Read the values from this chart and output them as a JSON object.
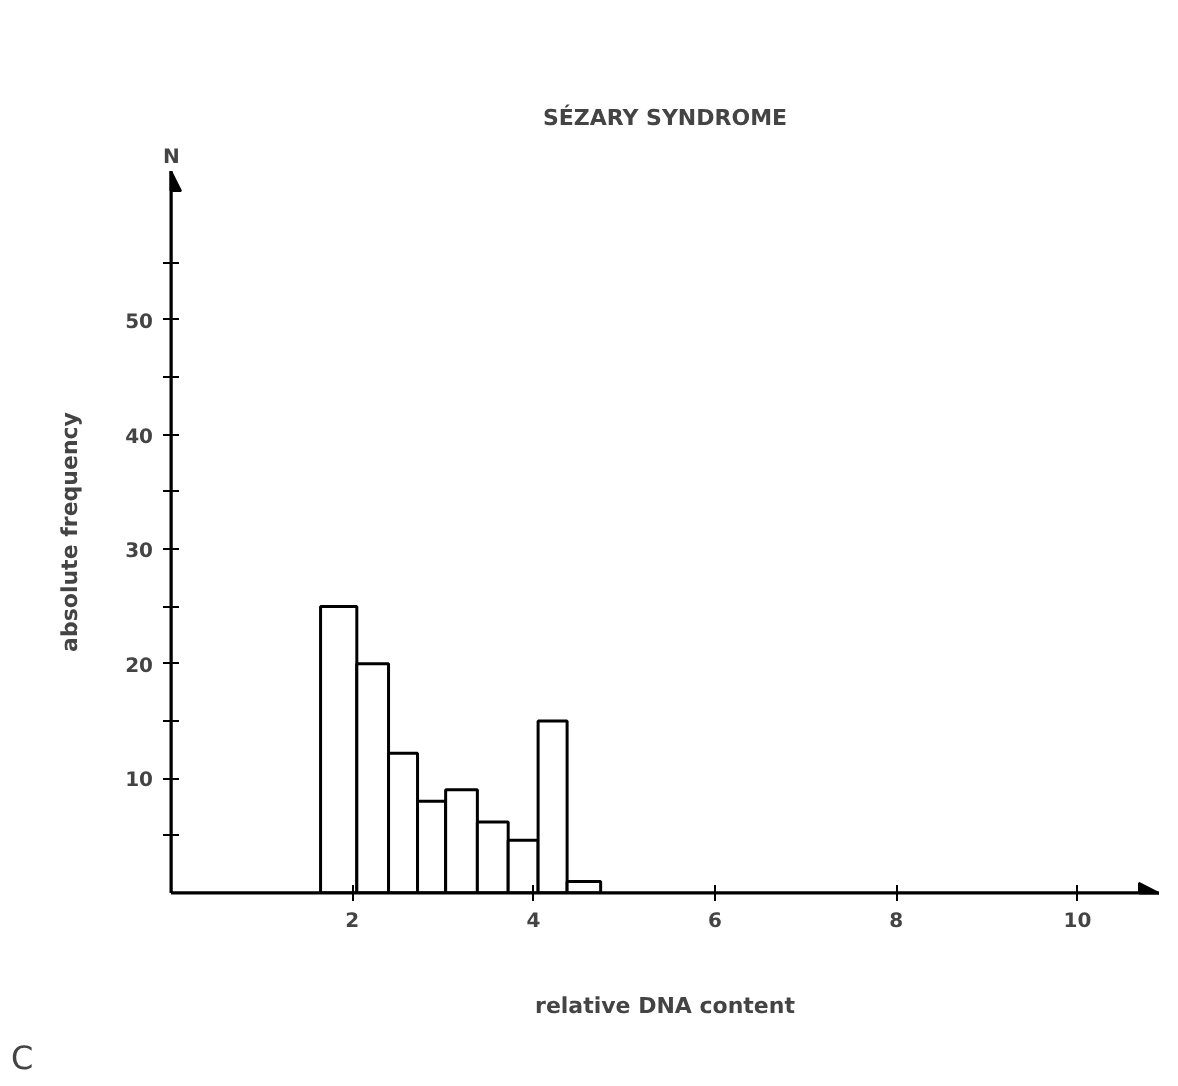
{
  "chart_data": {
    "type": "histogram",
    "title": "SÉZARY SYNDROME",
    "xlabel": "relative DNA content",
    "ylabel": "absolute frequency",
    "annotations": [
      "N",
      "C"
    ],
    "bins": [
      1.65,
      2.05,
      2.4,
      2.72,
      3.03,
      3.38,
      3.72,
      4.05,
      4.37,
      4.74
    ],
    "values": [
      25,
      20,
      12.2,
      8,
      9,
      6.2,
      4.6,
      15,
      1
    ],
    "color": "#ffffff",
    "xlim": [
      0,
      10.9
    ],
    "xticks": [
      2,
      4,
      6,
      8,
      10
    ],
    "ylim": [
      0,
      63
    ],
    "yticks": [
      {
        "value": 5,
        "label": null
      },
      10,
      {
        "value": 15,
        "label": null
      },
      20,
      {
        "value": 25,
        "label": null
      },
      30,
      {
        "value": 35,
        "label": null
      },
      40,
      {
        "value": 45,
        "label": null
      },
      50,
      {
        "value": 55,
        "label": null
      }
    ],
    "grid": false
  }
}
